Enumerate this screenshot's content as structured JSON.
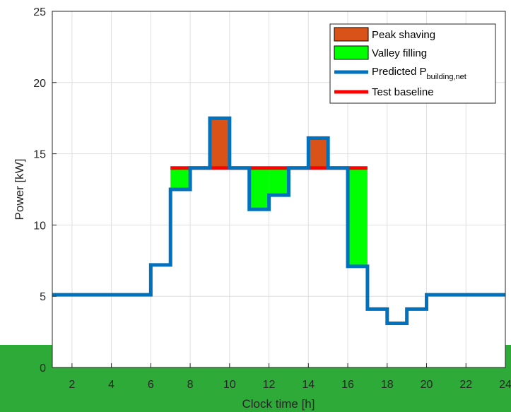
{
  "chart_data": {
    "type": "line",
    "xlabel": "Clock time [h]",
    "ylabel": "Power [kW]",
    "xlim": [
      1,
      24
    ],
    "ylim": [
      0,
      25
    ],
    "x_ticks": [
      2,
      4,
      6,
      8,
      10,
      12,
      14,
      16,
      18,
      20,
      22,
      24
    ],
    "y_ticks": [
      0,
      5,
      10,
      15,
      20,
      25
    ],
    "grid": true,
    "legend_position": "top-right",
    "predicted_building_net": {
      "name_main": "Predicted P",
      "name_sub": "building,net",
      "color": "#0072bd",
      "steps": [
        {
          "x0": 1,
          "x1": 6,
          "y": 5.1
        },
        {
          "x0": 6,
          "x1": 7,
          "y": 7.2
        },
        {
          "x0": 7,
          "x1": 8,
          "y": 12.5
        },
        {
          "x0": 8,
          "x1": 9,
          "y": 14.0
        },
        {
          "x0": 9,
          "x1": 10,
          "y": 17.5
        },
        {
          "x0": 10,
          "x1": 11,
          "y": 14.0
        },
        {
          "x0": 11,
          "x1": 12,
          "y": 11.1
        },
        {
          "x0": 12,
          "x1": 13,
          "y": 12.1
        },
        {
          "x0": 13,
          "x1": 14,
          "y": 14.0
        },
        {
          "x0": 14,
          "x1": 15,
          "y": 16.1
        },
        {
          "x0": 15,
          "x1": 16,
          "y": 14.0
        },
        {
          "x0": 16,
          "x1": 17,
          "y": 7.1
        },
        {
          "x0": 17,
          "x1": 18,
          "y": 4.1
        },
        {
          "x0": 18,
          "x1": 19,
          "y": 3.1
        },
        {
          "x0": 19,
          "x1": 20,
          "y": 4.1
        },
        {
          "x0": 20,
          "x1": 24,
          "y": 5.1
        }
      ]
    },
    "test_baseline": {
      "name": "Test baseline",
      "color": "#ff0000",
      "x": [
        7,
        17
      ],
      "y": 14.0
    },
    "peak_shaving": {
      "name": "Peak shaving",
      "color": "#d95319",
      "regions": [
        {
          "x0": 9,
          "x1": 10,
          "y_low": 14.0,
          "y_high": 17.5
        },
        {
          "x0": 14,
          "x1": 15,
          "y_low": 14.0,
          "y_high": 16.1
        }
      ]
    },
    "valley_filling": {
      "name": "Valley filling",
      "color": "#00ff00",
      "regions": [
        {
          "x0": 7,
          "x1": 8,
          "y_low": 12.5,
          "y_high": 14.0
        },
        {
          "x0": 11,
          "x1": 12,
          "y_low": 11.1,
          "y_high": 14.0
        },
        {
          "x0": 12,
          "x1": 13,
          "y_low": 12.1,
          "y_high": 14.0
        },
        {
          "x0": 16,
          "x1": 17,
          "y_low": 7.1,
          "y_high": 14.0
        }
      ]
    }
  }
}
